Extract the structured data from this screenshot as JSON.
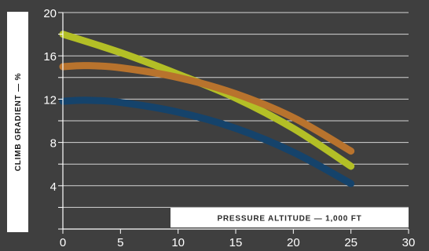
{
  "chart_data": {
    "type": "line",
    "xlabel": "PRESSURE ALTITUDE — 1,000 FT",
    "ylabel": "CLIMB GRADIENT — %",
    "xlim": [
      0,
      30
    ],
    "ylim": [
      0,
      20
    ],
    "x_ticks": [
      "0",
      "5",
      "10",
      "15",
      "20",
      "25",
      "30"
    ],
    "y_ticks": [
      "4",
      "8",
      "12",
      "16",
      "20"
    ],
    "grid": "horizontal",
    "series": [
      {
        "color": "#b3bf26",
        "x": [
          0,
          5,
          10,
          15,
          20,
          25
        ],
        "y": [
          18.0,
          16.3,
          14.3,
          12.1,
          9.3,
          5.8
        ]
      },
      {
        "color": "#b8732d",
        "x": [
          0,
          2,
          5,
          10,
          15,
          20,
          25
        ],
        "y": [
          15.0,
          15.1,
          14.9,
          14.0,
          12.5,
          10.3,
          7.2
        ]
      },
      {
        "color": "#15436b",
        "x": [
          0,
          2,
          5,
          10,
          15,
          20,
          25
        ],
        "y": [
          11.8,
          11.9,
          11.7,
          10.8,
          9.3,
          7.1,
          4.2
        ]
      }
    ]
  }
}
